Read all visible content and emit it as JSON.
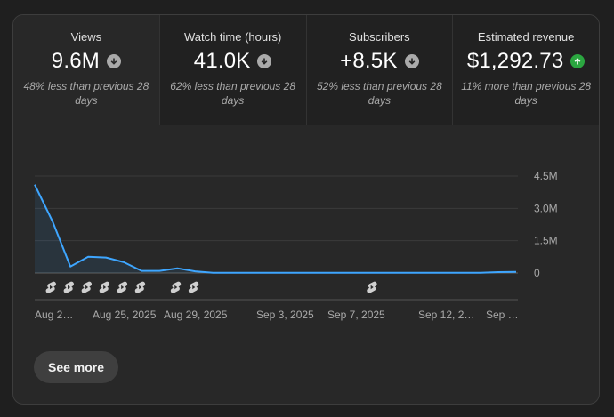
{
  "metrics": [
    {
      "label": "Views",
      "value": "9.6M",
      "trend": "down",
      "comparison": "48% less than previous 28 days"
    },
    {
      "label": "Watch time (hours)",
      "value": "41.0K",
      "trend": "down",
      "comparison": "62% less than previous 28 days"
    },
    {
      "label": "Subscribers",
      "value": "+8.5K",
      "trend": "down",
      "comparison": "52% less than previous 28 days"
    },
    {
      "label": "Estimated revenue",
      "value": "$1,292.73",
      "trend": "up",
      "comparison": "11% more than previous 28 days"
    }
  ],
  "colors": {
    "line": "#3ea6ff",
    "trend_up": "#2ba640",
    "trend_down": "#aaaaaa"
  },
  "icons": {
    "trend_down": "arrow-down-icon",
    "trend_up": "arrow-up-icon",
    "shorts_marker": "shorts-icon"
  },
  "chart_data": {
    "type": "area",
    "series": [
      {
        "values": [
          4.1,
          2.4,
          0.3,
          0.75,
          0.72,
          0.5,
          0.1,
          0.1,
          0.22,
          0.08,
          0.01,
          0.01,
          0.01,
          0.01,
          0.01,
          0.01,
          0.01,
          0.01,
          0.01,
          0.01,
          0.01,
          0.01,
          0.01,
          0.01,
          0.01,
          0.01,
          0.04,
          0.05
        ]
      }
    ],
    "y_unit": "M",
    "ylim": [
      0,
      4.5
    ],
    "yticks": [
      "4.5M",
      "3.0M",
      "1.5M",
      "0"
    ],
    "xticks": [
      "Aug 2…",
      "Aug 25, 2025",
      "Aug 29, 2025",
      "Sep 3, 2025",
      "Sep 7, 2025",
      "Sep 12, 2…",
      "Sep …"
    ],
    "upload_markers_count": 9
  },
  "see_more_label": "See more"
}
